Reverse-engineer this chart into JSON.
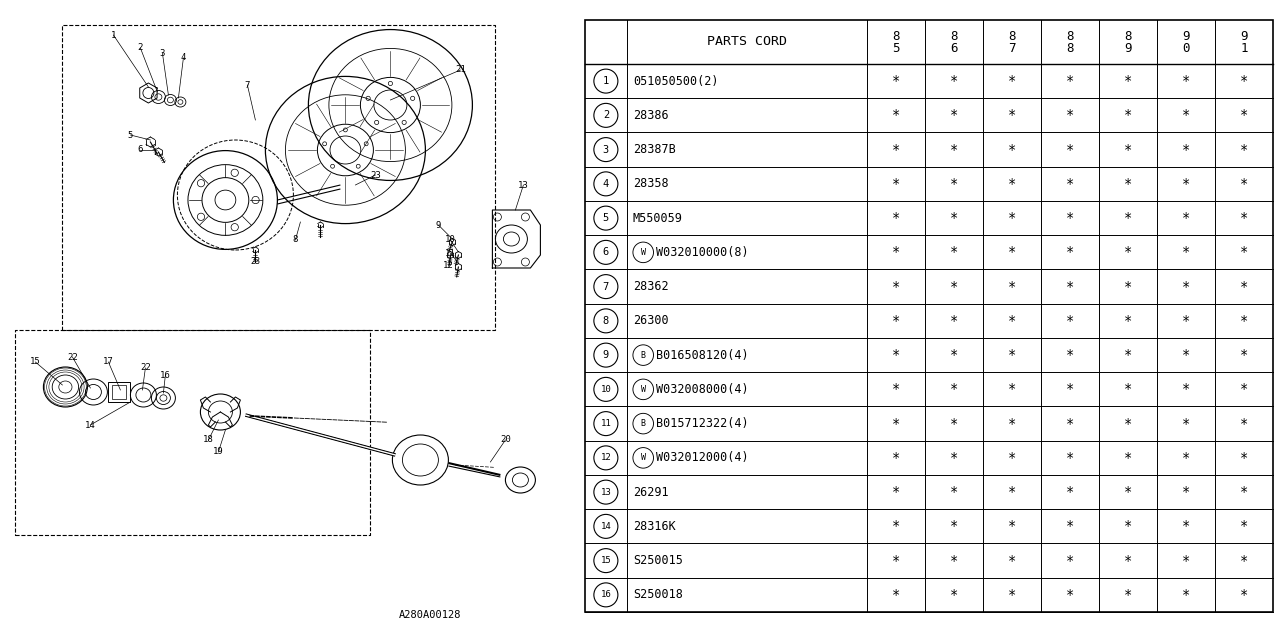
{
  "bg_color": "#ffffff",
  "rows": [
    [
      "1",
      "051050500(2)",
      "*",
      "*",
      "*",
      "*",
      "*",
      "*",
      "*"
    ],
    [
      "2",
      "28386",
      "*",
      "*",
      "*",
      "*",
      "*",
      "*",
      "*"
    ],
    [
      "3",
      "28387B",
      "*",
      "*",
      "*",
      "*",
      "*",
      "*",
      "*"
    ],
    [
      "4",
      "28358",
      "*",
      "*",
      "*",
      "*",
      "*",
      "*",
      "*"
    ],
    [
      "5",
      "M550059",
      "*",
      "*",
      "*",
      "*",
      "*",
      "*",
      "*"
    ],
    [
      "6",
      "W032010000(8)",
      "*",
      "*",
      "*",
      "*",
      "*",
      "*",
      "*"
    ],
    [
      "7",
      "28362",
      "*",
      "*",
      "*",
      "*",
      "*",
      "*",
      "*"
    ],
    [
      "8",
      "26300",
      "*",
      "*",
      "*",
      "*",
      "*",
      "*",
      "*"
    ],
    [
      "9",
      "B016508120(4)",
      "*",
      "*",
      "*",
      "*",
      "*",
      "*",
      "*"
    ],
    [
      "10",
      "W032008000(4)",
      "*",
      "*",
      "*",
      "*",
      "*",
      "*",
      "*"
    ],
    [
      "11",
      "B015712322(4)",
      "*",
      "*",
      "*",
      "*",
      "*",
      "*",
      "*"
    ],
    [
      "12",
      "W032012000(4)",
      "*",
      "*",
      "*",
      "*",
      "*",
      "*",
      "*"
    ],
    [
      "13",
      "26291",
      "*",
      "*",
      "*",
      "*",
      "*",
      "*",
      "*"
    ],
    [
      "14",
      "28316K",
      "*",
      "*",
      "*",
      "*",
      "*",
      "*",
      "*"
    ],
    [
      "15",
      "S250015",
      "*",
      "*",
      "*",
      "*",
      "*",
      "*",
      "*"
    ],
    [
      "16",
      "S250018",
      "*",
      "*",
      "*",
      "*",
      "*",
      "*",
      "*"
    ]
  ],
  "special_prefix": {
    "6": "W",
    "9": "B",
    "10": "W",
    "11": "B",
    "12": "W"
  },
  "year_top": [
    "8",
    "8",
    "8",
    "8",
    "8",
    "9",
    "9"
  ],
  "year_bot": [
    "5",
    "6",
    "7",
    "8",
    "9",
    "0",
    "1"
  ],
  "note_code": "A280A00128",
  "line_color": "#000000"
}
